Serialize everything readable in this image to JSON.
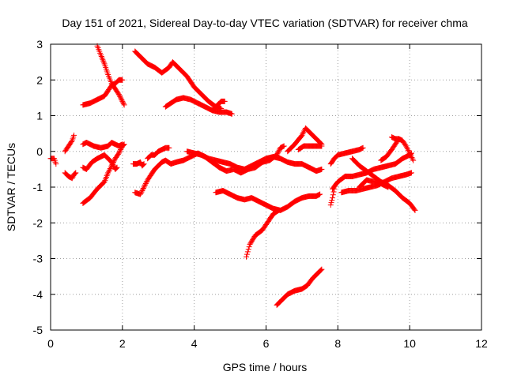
{
  "chart_data": {
    "type": "scatter",
    "title": "Day 151 of 2021, Sidereal Day-to-day VTEC variation (SDTVAR) for receiver chma",
    "xlabel": "GPS time / hours",
    "ylabel": "SDTVAR / TECUs",
    "xlim": [
      0,
      12
    ],
    "ylim": [
      -5,
      3
    ],
    "x_ticks": [
      0,
      2,
      4,
      6,
      8,
      10,
      12
    ],
    "y_ticks": [
      -5,
      -4,
      -3,
      -2,
      -1,
      0,
      1,
      2,
      3
    ],
    "x_tick_labels": [
      "0",
      "2",
      "4",
      "6",
      "8",
      "10",
      "12"
    ],
    "y_tick_labels": [
      "-5",
      "-4",
      "-3",
      "-2",
      "-1",
      "0",
      "1",
      "2",
      "3"
    ],
    "grid": true,
    "marker": "+",
    "color": "#ff0000",
    "series": [
      {
        "points": [
          [
            0.0,
            -0.2
          ],
          [
            0.1,
            -0.2
          ],
          [
            0.15,
            -0.35
          ]
        ]
      },
      {
        "points": [
          [
            0.4,
            -0.6
          ],
          [
            0.5,
            -0.7
          ],
          [
            0.6,
            -0.75
          ],
          [
            0.65,
            -0.65
          ],
          [
            0.7,
            -0.6
          ]
        ]
      },
      {
        "points": [
          [
            0.4,
            0.0
          ],
          [
            0.5,
            0.15
          ],
          [
            0.6,
            0.3
          ],
          [
            0.65,
            0.45
          ]
        ]
      },
      {
        "points": [
          [
            0.9,
            -1.45
          ],
          [
            1.1,
            -1.3
          ],
          [
            1.3,
            -1.05
          ],
          [
            1.5,
            -0.85
          ],
          [
            1.6,
            -0.6
          ],
          [
            1.7,
            -0.4
          ],
          [
            1.8,
            -0.2
          ],
          [
            1.9,
            -0.05
          ],
          [
            2.0,
            0.15
          ],
          [
            2.05,
            0.2
          ]
        ]
      },
      {
        "points": [
          [
            0.9,
            -0.45
          ],
          [
            1.0,
            -0.5
          ],
          [
            1.15,
            -0.3
          ],
          [
            1.3,
            -0.2
          ],
          [
            1.4,
            -0.15
          ],
          [
            1.5,
            -0.1
          ],
          [
            1.7,
            -0.3
          ],
          [
            1.8,
            -0.5
          ],
          [
            1.85,
            -0.45
          ]
        ]
      },
      {
        "points": [
          [
            0.9,
            0.2
          ],
          [
            1.0,
            0.25
          ],
          [
            1.2,
            0.15
          ],
          [
            1.4,
            0.1
          ],
          [
            1.6,
            0.15
          ],
          [
            1.7,
            0.25
          ],
          [
            1.8,
            0.2
          ],
          [
            1.9,
            0.15
          ],
          [
            2.0,
            0.2
          ]
        ]
      },
      {
        "points": [
          [
            0.9,
            1.3
          ],
          [
            1.1,
            1.35
          ],
          [
            1.3,
            1.45
          ],
          [
            1.5,
            1.55
          ],
          [
            1.6,
            1.7
          ],
          [
            1.7,
            1.85
          ],
          [
            1.8,
            1.9
          ],
          [
            1.9,
            2.0
          ],
          [
            2.0,
            2.0
          ]
        ]
      },
      {
        "points": [
          [
            1.3,
            2.95
          ],
          [
            1.4,
            2.7
          ],
          [
            1.5,
            2.45
          ],
          [
            1.6,
            2.15
          ],
          [
            1.7,
            1.9
          ],
          [
            1.8,
            1.75
          ],
          [
            1.9,
            1.6
          ],
          [
            2.0,
            1.4
          ],
          [
            2.05,
            1.3
          ]
        ]
      },
      {
        "points": [
          [
            2.3,
            -0.35
          ],
          [
            2.4,
            -0.35
          ],
          [
            2.5,
            -0.3
          ],
          [
            2.55,
            -0.4
          ],
          [
            2.6,
            -0.35
          ]
        ]
      },
      {
        "points": [
          [
            2.35,
            2.8
          ],
          [
            2.5,
            2.65
          ],
          [
            2.7,
            2.45
          ],
          [
            2.9,
            2.35
          ],
          [
            3.1,
            2.2
          ],
          [
            3.3,
            2.35
          ],
          [
            3.4,
            2.5
          ],
          [
            3.6,
            2.3
          ],
          [
            3.8,
            2.1
          ],
          [
            4.0,
            1.8
          ],
          [
            4.2,
            1.6
          ],
          [
            4.4,
            1.4
          ],
          [
            4.6,
            1.25
          ],
          [
            4.75,
            1.2
          ]
        ]
      },
      {
        "points": [
          [
            2.35,
            -1.15
          ],
          [
            2.5,
            -1.2
          ],
          [
            2.6,
            -1.0
          ],
          [
            2.7,
            -0.8
          ],
          [
            2.8,
            -0.65
          ],
          [
            2.9,
            -0.5
          ],
          [
            3.0,
            -0.4
          ],
          [
            3.1,
            -0.3
          ],
          [
            3.2,
            -0.25
          ],
          [
            3.35,
            -0.35
          ],
          [
            3.5,
            -0.3
          ],
          [
            3.7,
            -0.25
          ],
          [
            3.9,
            -0.15
          ],
          [
            4.1,
            -0.05
          ],
          [
            4.3,
            -0.15
          ],
          [
            4.5,
            -0.3
          ],
          [
            4.7,
            -0.45
          ],
          [
            4.9,
            -0.55
          ],
          [
            5.1,
            -0.5
          ],
          [
            5.3,
            -0.6
          ],
          [
            5.5,
            -0.5
          ],
          [
            5.7,
            -0.45
          ],
          [
            5.9,
            -0.3
          ],
          [
            6.1,
            -0.25
          ],
          [
            6.3,
            -0.1
          ],
          [
            6.4,
            0.1
          ],
          [
            6.5,
            0.15
          ]
        ]
      },
      {
        "points": [
          [
            2.7,
            -0.2
          ],
          [
            2.8,
            -0.1
          ],
          [
            2.9,
            -0.1
          ],
          [
            3.0,
            0.0
          ],
          [
            3.1,
            0.05
          ],
          [
            3.2,
            0.1
          ],
          [
            3.3,
            0.1
          ]
        ]
      },
      {
        "points": [
          [
            3.2,
            1.25
          ],
          [
            3.35,
            1.35
          ],
          [
            3.5,
            1.45
          ],
          [
            3.7,
            1.5
          ],
          [
            3.9,
            1.45
          ],
          [
            4.1,
            1.35
          ],
          [
            4.3,
            1.25
          ],
          [
            4.5,
            1.15
          ],
          [
            4.7,
            1.1
          ],
          [
            4.9,
            1.1
          ],
          [
            5.05,
            1.05
          ]
        ]
      },
      {
        "points": [
          [
            4.5,
            1.15
          ],
          [
            4.6,
            1.25
          ],
          [
            4.75,
            1.4
          ],
          [
            4.85,
            1.4
          ]
        ]
      },
      {
        "points": [
          [
            3.8,
            0.0
          ],
          [
            4.0,
            -0.05
          ],
          [
            4.2,
            -0.1
          ],
          [
            4.4,
            -0.2
          ],
          [
            4.6,
            -0.25
          ],
          [
            4.8,
            -0.3
          ],
          [
            5.0,
            -0.35
          ],
          [
            5.2,
            -0.45
          ],
          [
            5.4,
            -0.5
          ],
          [
            5.6,
            -0.4
          ],
          [
            5.8,
            -0.3
          ],
          [
            6.0,
            -0.2
          ],
          [
            6.2,
            -0.15
          ],
          [
            6.4,
            -0.2
          ],
          [
            6.6,
            -0.3
          ],
          [
            6.8,
            -0.35
          ],
          [
            7.0,
            -0.35
          ],
          [
            7.2,
            -0.45
          ],
          [
            7.4,
            -0.55
          ],
          [
            7.55,
            -0.5
          ]
        ]
      },
      {
        "points": [
          [
            4.6,
            -1.15
          ],
          [
            4.8,
            -1.1
          ],
          [
            5.0,
            -1.2
          ],
          [
            5.2,
            -1.3
          ],
          [
            5.4,
            -1.35
          ],
          [
            5.6,
            -1.3
          ],
          [
            5.8,
            -1.4
          ],
          [
            6.0,
            -1.5
          ],
          [
            6.2,
            -1.6
          ],
          [
            6.4,
            -1.65
          ],
          [
            6.6,
            -1.55
          ],
          [
            6.8,
            -1.4
          ],
          [
            7.0,
            -1.3
          ],
          [
            7.2,
            -1.25
          ],
          [
            7.4,
            -1.25
          ],
          [
            7.5,
            -1.2
          ]
        ]
      },
      {
        "points": [
          [
            5.45,
            -2.95
          ],
          [
            5.55,
            -2.6
          ],
          [
            5.7,
            -2.35
          ],
          [
            5.9,
            -2.2
          ],
          [
            6.0,
            -2.05
          ],
          [
            6.1,
            -1.9
          ],
          [
            6.2,
            -1.75
          ],
          [
            6.35,
            -1.65
          ]
        ]
      },
      {
        "points": [
          [
            6.3,
            -4.3
          ],
          [
            6.45,
            -4.15
          ],
          [
            6.6,
            -4.0
          ],
          [
            6.8,
            -3.9
          ],
          [
            7.0,
            -3.85
          ],
          [
            7.15,
            -3.75
          ],
          [
            7.3,
            -3.55
          ],
          [
            7.45,
            -3.4
          ],
          [
            7.55,
            -3.3
          ]
        ]
      },
      {
        "points": [
          [
            6.6,
            0.0
          ],
          [
            6.8,
            0.2
          ],
          [
            7.0,
            0.45
          ],
          [
            7.1,
            0.65
          ],
          [
            7.25,
            0.5
          ],
          [
            7.4,
            0.35
          ],
          [
            7.55,
            0.2
          ]
        ]
      },
      {
        "points": [
          [
            6.9,
            0.05
          ],
          [
            7.05,
            0.15
          ],
          [
            7.2,
            0.15
          ],
          [
            7.4,
            0.15
          ],
          [
            7.55,
            0.15
          ]
        ]
      },
      {
        "points": [
          [
            7.8,
            -1.5
          ],
          [
            7.85,
            -1.3
          ],
          [
            7.9,
            -1.05
          ]
        ]
      },
      {
        "points": [
          [
            7.8,
            -0.35
          ],
          [
            7.9,
            -0.2
          ],
          [
            8.0,
            -0.1
          ],
          [
            8.2,
            -0.05
          ],
          [
            8.4,
            0.0
          ],
          [
            8.6,
            0.05
          ],
          [
            8.7,
            0.1
          ]
        ]
      },
      {
        "points": [
          [
            7.85,
            -1.05
          ],
          [
            8.0,
            -0.85
          ],
          [
            8.2,
            -0.7
          ],
          [
            8.4,
            -0.7
          ],
          [
            8.6,
            -0.65
          ],
          [
            8.8,
            -0.6
          ],
          [
            9.0,
            -0.5
          ],
          [
            9.2,
            -0.45
          ],
          [
            9.4,
            -0.4
          ],
          [
            9.6,
            -0.35
          ],
          [
            9.8,
            -0.2
          ],
          [
            10.0,
            -0.1
          ],
          [
            10.05,
            -0.05
          ]
        ]
      },
      {
        "points": [
          [
            8.1,
            -1.15
          ],
          [
            8.3,
            -1.1
          ],
          [
            8.5,
            -1.1
          ],
          [
            8.7,
            -1.05
          ],
          [
            8.9,
            -1.0
          ],
          [
            9.1,
            -0.95
          ],
          [
            9.3,
            -0.85
          ],
          [
            9.5,
            -0.75
          ],
          [
            9.7,
            -0.7
          ],
          [
            9.9,
            -0.65
          ],
          [
            10.05,
            -0.6
          ]
        ]
      },
      {
        "points": [
          [
            8.4,
            -0.2
          ],
          [
            8.6,
            -0.4
          ],
          [
            8.8,
            -0.55
          ],
          [
            9.0,
            -0.7
          ],
          [
            9.2,
            -0.85
          ],
          [
            9.4,
            -0.95
          ],
          [
            9.6,
            -1.1
          ],
          [
            9.8,
            -1.3
          ],
          [
            10.0,
            -1.45
          ],
          [
            10.15,
            -1.65
          ]
        ]
      },
      {
        "points": [
          [
            9.2,
            -0.25
          ],
          [
            9.35,
            -0.15
          ],
          [
            9.5,
            0.05
          ],
          [
            9.6,
            0.2
          ],
          [
            9.7,
            0.35
          ]
        ]
      },
      {
        "points": [
          [
            9.5,
            0.4
          ],
          [
            9.6,
            0.35
          ],
          [
            9.7,
            0.35
          ],
          [
            9.8,
            0.3
          ],
          [
            9.9,
            0.15
          ],
          [
            10.0,
            -0.05
          ],
          [
            10.1,
            -0.25
          ]
        ]
      },
      {
        "points": [
          [
            8.6,
            -1.0
          ],
          [
            8.8,
            -0.8
          ],
          [
            9.0,
            -0.85
          ],
          [
            9.2,
            -0.9
          ],
          [
            9.4,
            -1.0
          ]
        ]
      }
    ]
  }
}
